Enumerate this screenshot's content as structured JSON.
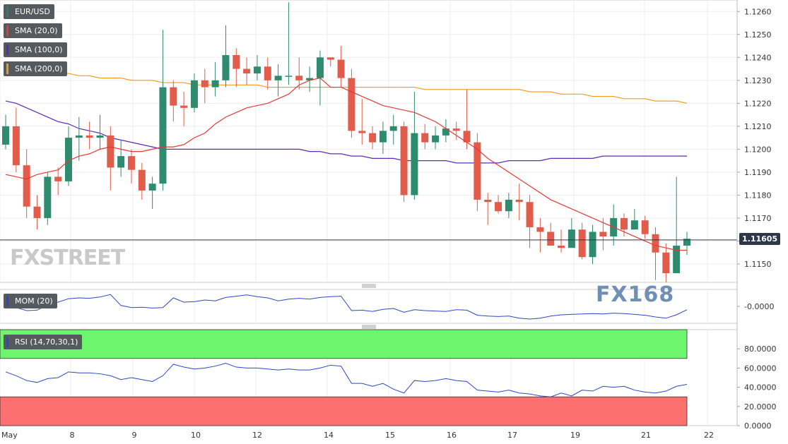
{
  "chart_data": {
    "type": "candlestick",
    "symbol": "EUR/USD",
    "price_axis": {
      "min": 1.1142,
      "max": 1.1265,
      "ticks": [
        1.126,
        1.125,
        1.124,
        1.123,
        1.122,
        1.121,
        1.12,
        1.119,
        1.118,
        1.117,
        1.116,
        1.115
      ],
      "tick_labels": [
        "1.1260",
        "1.1250",
        "1.1240",
        "1.1230",
        "1.1220",
        "1.1210",
        "1.1200",
        "1.1190",
        "1.1180",
        "1.1170",
        "1.1160",
        "1.1150"
      ]
    },
    "x_axis": {
      "labels": [
        "May",
        "8",
        "9",
        "10",
        "12",
        "14",
        "15",
        "16",
        "17",
        "19",
        "21",
        "22"
      ]
    },
    "last_price": "1.11605",
    "last_price_value": 1.11605,
    "candles": [
      [
        1.1202,
        1.121,
        1.1215,
        1.12
      ],
      [
        1.121,
        1.1193,
        1.1218,
        1.119
      ],
      [
        1.1193,
        1.1175,
        1.12,
        1.117
      ],
      [
        1.1175,
        1.117,
        1.118,
        1.1165
      ],
      [
        1.117,
        1.1188,
        1.119,
        1.1167
      ],
      [
        1.1188,
        1.1186,
        1.1192,
        1.118
      ],
      [
        1.1186,
        1.1205,
        1.121,
        1.1184
      ],
      [
        1.1205,
        1.1206,
        1.1214,
        1.1195
      ],
      [
        1.1206,
        1.1205,
        1.1212,
        1.12
      ],
      [
        1.1205,
        1.1206,
        1.1215,
        1.12
      ],
      [
        1.1206,
        1.1192,
        1.121,
        1.1182
      ],
      [
        1.1192,
        1.1197,
        1.1204,
        1.1188
      ],
      [
        1.1197,
        1.1191,
        1.12,
        1.1185
      ],
      [
        1.1191,
        1.1182,
        1.1194,
        1.1178
      ],
      [
        1.1182,
        1.1185,
        1.1188,
        1.1174
      ],
      [
        1.1185,
        1.1227,
        1.1252,
        1.1182
      ],
      [
        1.1227,
        1.1219,
        1.123,
        1.1212
      ],
      [
        1.1219,
        1.1218,
        1.1225,
        1.121
      ],
      [
        1.1218,
        1.123,
        1.1233,
        1.1216
      ],
      [
        1.123,
        1.1227,
        1.1235,
        1.122
      ],
      [
        1.1227,
        1.123,
        1.1238,
        1.1223
      ],
      [
        1.123,
        1.1241,
        1.1254,
        1.1227
      ],
      [
        1.1241,
        1.1235,
        1.1244,
        1.1227
      ],
      [
        1.1235,
        1.1233,
        1.124,
        1.1228
      ],
      [
        1.1233,
        1.1236,
        1.1241,
        1.123
      ],
      [
        1.1236,
        1.123,
        1.124,
        1.1226
      ],
      [
        1.123,
        1.1232,
        1.1237,
        1.1223
      ],
      [
        1.1232,
        1.1232,
        1.1264,
        1.1228
      ],
      [
        1.1232,
        1.123,
        1.124,
        1.1226
      ],
      [
        1.123,
        1.1231,
        1.1236,
        1.1225
      ],
      [
        1.1231,
        1.124,
        1.1243,
        1.1219
      ],
      [
        1.124,
        1.1239,
        1.124,
        1.1236
      ],
      [
        1.1239,
        1.1231,
        1.1245,
        1.1227
      ],
      [
        1.1231,
        1.1208,
        1.1235,
        1.1205
      ],
      [
        1.1208,
        1.1207,
        1.1222,
        1.1202
      ],
      [
        1.1207,
        1.1203,
        1.121,
        1.12
      ],
      [
        1.1203,
        1.1208,
        1.1212,
        1.1198
      ],
      [
        1.1208,
        1.121,
        1.1215,
        1.1202
      ],
      [
        1.121,
        1.118,
        1.1212,
        1.1177
      ],
      [
        1.118,
        1.1207,
        1.1225,
        1.1178
      ],
      [
        1.1207,
        1.1203,
        1.1211,
        1.12
      ],
      [
        1.1203,
        1.1206,
        1.121,
        1.12
      ],
      [
        1.1206,
        1.1209,
        1.1213,
        1.1203
      ],
      [
        1.1209,
        1.1208,
        1.1212,
        1.1204
      ],
      [
        1.1208,
        1.1203,
        1.1226,
        1.12
      ],
      [
        1.1203,
        1.1178,
        1.1207,
        1.1173
      ],
      [
        1.1178,
        1.1177,
        1.1181,
        1.1167
      ],
      [
        1.1177,
        1.1173,
        1.118,
        1.1172
      ],
      [
        1.1173,
        1.1178,
        1.1181,
        1.117
      ],
      [
        1.1178,
        1.1177,
        1.1185,
        1.1169
      ],
      [
        1.1177,
        1.1166,
        1.118,
        1.1157
      ],
      [
        1.1166,
        1.1164,
        1.117,
        1.1155
      ],
      [
        1.1164,
        1.1158,
        1.1168,
        1.116
      ],
      [
        1.1158,
        1.1157,
        1.1165,
        1.1155
      ],
      [
        1.1157,
        1.1165,
        1.117,
        1.1158
      ],
      [
        1.1165,
        1.1153,
        1.1168,
        1.1152
      ],
      [
        1.1153,
        1.1164,
        1.1167,
        1.115
      ],
      [
        1.1164,
        1.1162,
        1.117,
        1.1156
      ],
      [
        1.1162,
        1.117,
        1.1176,
        1.1158
      ],
      [
        1.117,
        1.1165,
        1.1172,
        1.1162
      ],
      [
        1.1165,
        1.1169,
        1.1174,
        1.1165
      ],
      [
        1.1169,
        1.1163,
        1.1171,
        1.1161
      ],
      [
        1.1163,
        1.1155,
        1.1166,
        1.1143
      ],
      [
        1.1155,
        1.1146,
        1.1159,
        1.1142
      ],
      [
        1.1146,
        1.1158,
        1.1188,
        1.1146
      ],
      [
        1.1158,
        1.1161,
        1.1164,
        1.1154
      ]
    ],
    "sma20": [
      1.1189,
      1.1188,
      1.1187,
      1.1189,
      1.119,
      1.1191,
      1.1195,
      1.1197,
      1.1198,
      1.12,
      1.1201,
      1.12,
      1.1199,
      1.1199,
      1.12,
      1.1201,
      1.1201,
      1.1202,
      1.1205,
      1.1207,
      1.1211,
      1.1214,
      1.1216,
      1.1218,
      1.1219,
      1.122,
      1.1222,
      1.1224,
      1.1228,
      1.123,
      1.1231,
      1.1227,
      1.1227,
      1.1225,
      1.1223,
      1.1221,
      1.1219,
      1.1218,
      1.1217,
      1.1216,
      1.1214,
      1.1212,
      1.1209,
      1.1206,
      1.1203,
      1.12,
      1.1196,
      1.1193,
      1.119,
      1.1187,
      1.1184,
      1.1181,
      1.1178,
      1.1176,
      1.1174,
      1.1172,
      1.117,
      1.1168,
      1.1166,
      1.1164,
      1.1162,
      1.116,
      1.1158,
      1.1157,
      1.1156,
      1.1156
    ],
    "sma100": [
      1.1221,
      1.122,
      1.1218,
      1.1216,
      1.1214,
      1.1212,
      1.1211,
      1.1209,
      1.1208,
      1.1207,
      1.1205,
      1.1204,
      1.1203,
      1.1202,
      1.1201,
      1.12,
      1.12,
      1.12,
      1.12,
      1.12,
      1.12,
      1.12,
      1.12,
      1.12,
      1.12,
      1.12,
      1.12,
      1.12,
      1.12,
      1.1199,
      1.1199,
      1.1198,
      1.1198,
      1.1197,
      1.1197,
      1.1196,
      1.1196,
      1.1196,
      1.1195,
      1.1195,
      1.1195,
      1.1195,
      1.1195,
      1.1194,
      1.1194,
      1.1194,
      1.1194,
      1.1194,
      1.1195,
      1.1195,
      1.1195,
      1.1195,
      1.1196,
      1.1196,
      1.1196,
      1.1196,
      1.1196,
      1.1197,
      1.1197,
      1.1197,
      1.1197,
      1.1197,
      1.1197,
      1.1197,
      1.1197,
      1.1197
    ],
    "sma200": [
      1.1236,
      1.1236,
      1.1235,
      1.1234,
      1.1234,
      1.1233,
      1.1233,
      1.1232,
      1.1232,
      1.1231,
      1.1231,
      1.1231,
      1.123,
      1.123,
      1.123,
      1.1229,
      1.1229,
      1.1229,
      1.1228,
      1.1228,
      1.1228,
      1.1228,
      1.1228,
      1.1228,
      1.1228,
      1.1227,
      1.1227,
      1.1227,
      1.1227,
      1.1227,
      1.1227,
      1.1227,
      1.1227,
      1.1227,
      1.1227,
      1.1227,
      1.1227,
      1.1227,
      1.1227,
      1.1227,
      1.1226,
      1.1226,
      1.1226,
      1.1226,
      1.1226,
      1.1226,
      1.1226,
      1.1226,
      1.1226,
      1.1226,
      1.1225,
      1.1225,
      1.1225,
      1.1224,
      1.1224,
      1.1224,
      1.1223,
      1.1223,
      1.1223,
      1.1222,
      1.1222,
      1.1222,
      1.1221,
      1.1221,
      1.1221,
      1.122
    ],
    "mom": {
      "min": -0.004,
      "max": 0.004,
      "tick_labels": [
        "-0.0000"
      ],
      "tick_values": [
        0.0
      ],
      "values": [
        0.0005,
        -0.0003,
        -0.001,
        -0.0009,
        0.0004,
        0.001,
        0.0018,
        0.002,
        0.0019,
        0.0022,
        0.0028,
        0.0002,
        -0.0003,
        -0.0002,
        -0.0004,
        -0.0003,
        0.002,
        0.001,
        0.0011,
        0.0015,
        0.0013,
        0.0021,
        0.0024,
        0.0027,
        0.0023,
        0.002,
        0.0013,
        0.0017,
        0.0019,
        0.0017,
        0.0021,
        0.0023,
        0.0024,
        -0.001,
        -0.0009,
        -0.0012,
        -0.0007,
        -0.0005,
        -0.0014,
        -0.0008,
        -0.001,
        -0.0011,
        -0.0012,
        -0.0008,
        -0.0009,
        -0.0021,
        -0.0023,
        -0.0024,
        -0.0023,
        -0.0028,
        -0.003,
        -0.0028,
        -0.0023,
        -0.002,
        -0.0019,
        -0.0018,
        -0.0017,
        -0.0018,
        -0.0016,
        -0.0017,
        -0.0019,
        -0.0021,
        -0.0025,
        -0.0028,
        -0.002,
        -0.0008
      ]
    },
    "rsi": {
      "min": 0,
      "max": 100,
      "overbought": 70,
      "oversold": 30,
      "tick_labels": [
        "80.0000",
        "60.0000",
        "40.0000",
        "20.0000",
        "0.0000"
      ],
      "tick_values": [
        80,
        60,
        40,
        20,
        0
      ],
      "values": [
        56,
        52,
        47,
        45,
        49,
        50,
        56,
        55,
        55,
        54,
        52,
        48,
        50,
        48,
        46,
        52,
        64,
        61,
        59,
        60,
        62,
        65,
        61,
        60,
        60,
        59,
        58,
        59,
        58,
        58,
        60,
        63,
        62,
        44,
        44,
        41,
        44,
        38,
        34,
        47,
        46,
        47,
        49,
        47,
        46,
        37,
        36,
        35,
        37,
        34,
        33,
        31,
        30,
        34,
        31,
        37,
        36,
        41,
        40,
        41,
        37,
        35,
        34,
        36,
        41,
        43
      ]
    }
  },
  "legend": [
    {
      "label": "EUR/USD",
      "color": "#2e7d6b"
    },
    {
      "label": "SMA (20,0)",
      "color": "#e53935"
    },
    {
      "label": "SMA (100,0)",
      "color": "#5b2bb8"
    },
    {
      "label": "SMA (200,0)",
      "color": "#f29a1a"
    }
  ],
  "indicators": {
    "mom_label": "MOM (20)",
    "rsi_label": "RSI (14,70,30,1)"
  },
  "logos": {
    "fxstreet": "FXSTREET",
    "fx168": "FX168"
  },
  "colors": {
    "bull": "#2e8b6e",
    "bear": "#e25c4b",
    "sma20": "#e53935",
    "sma100": "#5b2bb8",
    "sma200": "#f29a1a",
    "mom": "#2d46c9",
    "rsi": "#2d46c9",
    "overbought_fill": "#6ef56e",
    "oversold_fill": "#fc7070"
  }
}
